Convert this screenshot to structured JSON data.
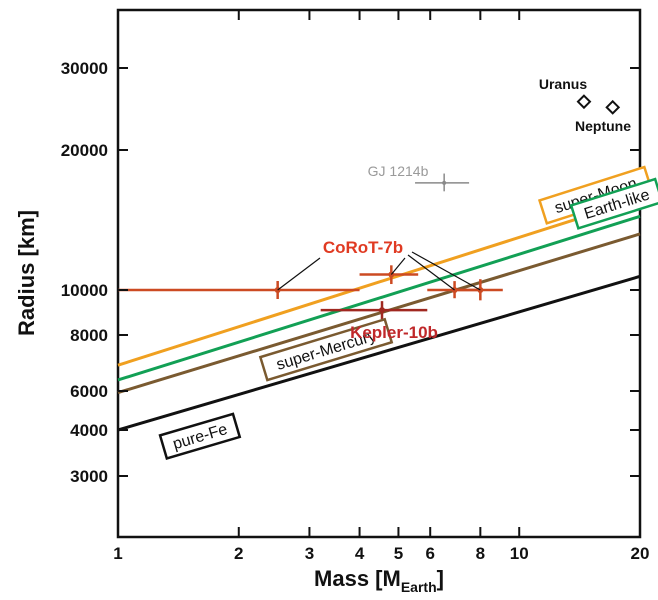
{
  "chart_data": {
    "type": "scatter",
    "xlabel": "Mass [M",
    "xlabel_sub": "Earth",
    "xlabel_end": "]",
    "ylabel": "Radius [km]",
    "x_scale": "log",
    "xlim": [
      1,
      20
    ],
    "x_ticks": [
      {
        "value": 1,
        "label": "1"
      },
      {
        "value": 2,
        "label": "2"
      },
      {
        "value": 3,
        "label": "3"
      },
      {
        "value": 4,
        "label": "4"
      },
      {
        "value": 5,
        "label": "5"
      },
      {
        "value": 6,
        "label": "6"
      },
      {
        "value": 8,
        "label": "8"
      },
      {
        "value": 10,
        "label": "10"
      },
      {
        "value": 20,
        "label": "20"
      }
    ],
    "y_ticks": [
      "3000",
      "4000",
      "6000",
      "8000",
      "10000",
      "20000",
      "30000"
    ],
    "grid": false,
    "models": [
      {
        "name": "super-Moon",
        "color": "#f0a020",
        "points": [
          [
            1,
            6850
          ],
          [
            20,
            15700
          ]
        ]
      },
      {
        "name": "Earth-like",
        "color": "#12a055",
        "points": [
          [
            1,
            6350
          ],
          [
            20,
            14400
          ]
        ]
      },
      {
        "name": "super-Mercury",
        "color": "#7a5a30",
        "points": [
          [
            1,
            5900
          ],
          [
            20,
            13200
          ]
        ]
      },
      {
        "name": "pure-Fe",
        "color": "#111111",
        "points": [
          [
            1,
            4000
          ],
          [
            20,
            10700
          ]
        ]
      }
    ],
    "series": [
      {
        "name": "CoRoT-7b",
        "color": "#cc4a22",
        "label_color": "#e03a22",
        "points": [
          {
            "x": 2.5,
            "y": 10000,
            "x_err": [
              1.0,
              4.0
            ]
          },
          {
            "x": 4.8,
            "y": 10800,
            "x_err": [
              4.0,
              5.6
            ],
            "y_err": [
              10300,
              11300
            ]
          },
          {
            "x": 6.9,
            "y": 10000,
            "x_err": [
              5.9,
              8.0
            ],
            "y_err": [
              9600,
              10450
            ]
          },
          {
            "x": 8.0,
            "y": 10000,
            "x_err": [
              7.0,
              9.1
            ],
            "y_err": [
              9500,
              10550
            ]
          }
        ]
      },
      {
        "name": "Kepler-10b",
        "color": "#a02820",
        "label_color": "#c0282a",
        "points": [
          {
            "x": 4.55,
            "y": 9050,
            "x_err": [
              3.2,
              5.9
            ]
          }
        ]
      },
      {
        "name": "GJ 1214b",
        "color": "#8a8a8a",
        "label_color": "#9a9a9a",
        "points": [
          {
            "x": 6.5,
            "y": 17000,
            "x_err": [
              5.5,
              7.5
            ],
            "y_err": [
              16300,
              17800
            ]
          }
        ]
      },
      {
        "name": "Uranus",
        "color": "#111111",
        "marker": "diamond",
        "points": [
          {
            "x": 14.5,
            "y": 25400
          }
        ]
      },
      {
        "name": "Neptune",
        "color": "#111111",
        "marker": "diamond",
        "points": [
          {
            "x": 17.1,
            "y": 24700
          }
        ]
      }
    ]
  }
}
